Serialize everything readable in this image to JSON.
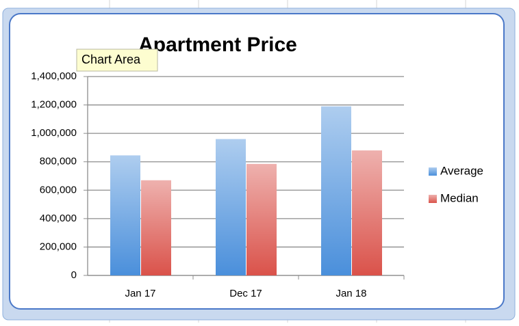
{
  "chart_data": {
    "type": "bar",
    "title": "Apartment Price",
    "tooltip": "Chart Area",
    "categories": [
      "Jan 17",
      "Dec 17",
      "Jan 18"
    ],
    "series": [
      {
        "name": "Average",
        "color": "#4a8fdb",
        "values": [
          845000,
          960000,
          1190000
        ]
      },
      {
        "name": "Median",
        "color": "#da524a",
        "values": [
          670000,
          785000,
          880000
        ]
      }
    ],
    "ylim": [
      0,
      1400000
    ],
    "yticks": [
      0,
      {
        "value": 200000,
        "label": "200,000"
      },
      {
        "value": 400000,
        "label": "400,000"
      },
      {
        "value": 600000,
        "label": "600,000"
      },
      {
        "value": 800000,
        "label": "800,000"
      },
      {
        "value": 1000000,
        "label": "1,000,000"
      },
      {
        "value": 1200000,
        "label": "1,200,000"
      },
      {
        "value": 1400000,
        "label": "1,400,000"
      }
    ],
    "grid": true,
    "legend": "right"
  }
}
